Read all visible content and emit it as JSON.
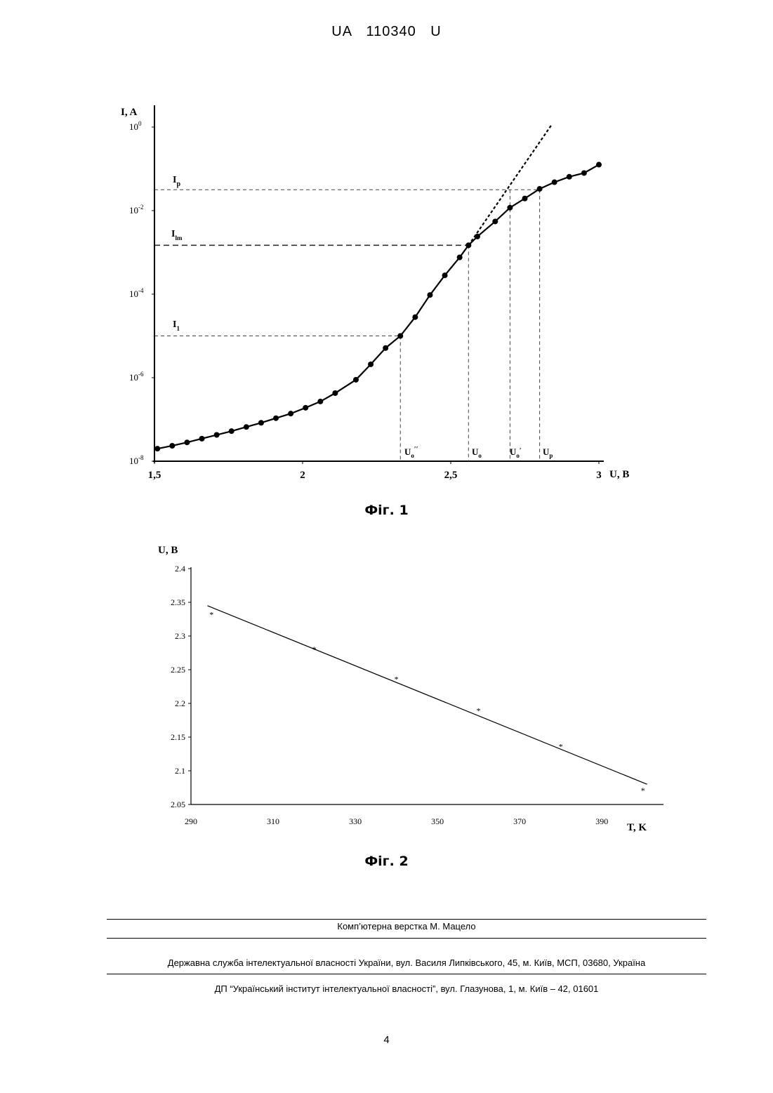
{
  "header": {
    "document_id": "UA 110340 U"
  },
  "figure1": {
    "caption": "Фіг. 1",
    "labels": {
      "y_axis": "I, A",
      "x_axis": "U, B",
      "Ip": "I",
      "Ip_sub": "p",
      "Ilm": "I",
      "Ilm_sub": "lm",
      "I1": "I",
      "I1_sub": "1",
      "U0pp": "U",
      "U0pp_sub": "o",
      "U0pp_sup": "′′",
      "U0": "U",
      "U0_sub": "o",
      "U0p": "U",
      "U0p_sub": "o",
      "U0p_sup": "′",
      "Up": "U",
      "Up_sub": "p"
    },
    "chart_data": {
      "type": "line",
      "x_label": "U, B",
      "y_label": "I, A",
      "y_scale": "log",
      "xlim": [
        1.5,
        3.0
      ],
      "ylim_exp": [
        -8,
        0
      ],
      "x_ticks": [
        "1,5",
        "2",
        "2,5",
        "3"
      ],
      "x_tick_values": [
        1.5,
        2.0,
        2.5,
        3.0
      ],
      "y_ticks": [
        {
          "base": "10",
          "exp": "0"
        },
        {
          "base": "10",
          "exp": "-2"
        },
        {
          "base": "10",
          "exp": "-4"
        },
        {
          "base": "10",
          "exp": "-6"
        },
        {
          "base": "10",
          "exp": "-8"
        }
      ],
      "y_tick_exps": [
        0,
        -2,
        -4,
        -6,
        -8
      ],
      "series": [
        {
          "style": "solid-with-markers",
          "points": [
            [
              1.51,
              -7.7
            ],
            [
              1.56,
              -7.63
            ],
            [
              1.61,
              -7.55
            ],
            [
              1.66,
              -7.46
            ],
            [
              1.71,
              -7.37
            ],
            [
              1.76,
              -7.28
            ],
            [
              1.81,
              -7.18
            ],
            [
              1.86,
              -7.08
            ],
            [
              1.91,
              -6.97
            ],
            [
              1.96,
              -6.86
            ],
            [
              2.01,
              -6.72
            ],
            [
              2.06,
              -6.57
            ],
            [
              2.11,
              -6.37
            ],
            [
              2.18,
              -6.05
            ],
            [
              2.23,
              -5.68
            ],
            [
              2.28,
              -5.29
            ],
            [
              2.33,
              -5.0
            ],
            [
              2.38,
              -4.55
            ],
            [
              2.43,
              -4.02
            ],
            [
              2.48,
              -3.55
            ],
            [
              2.53,
              -3.12
            ],
            [
              2.56,
              -2.83
            ],
            [
              2.59,
              -2.62
            ],
            [
              2.65,
              -2.26
            ],
            [
              2.7,
              -1.93
            ],
            [
              2.75,
              -1.71
            ],
            [
              2.8,
              -1.48
            ],
            [
              2.85,
              -1.32
            ],
            [
              2.9,
              -1.19
            ],
            [
              2.95,
              -1.1
            ],
            [
              3.0,
              -0.9
            ]
          ]
        },
        {
          "style": "dashed-extrapolation",
          "points": [
            [
              2.56,
              -2.83
            ],
            [
              2.84,
              0.05
            ]
          ]
        }
      ],
      "reference_levels": {
        "Ip": -1.5,
        "Ilm": -2.83,
        "I1": -5.0,
        "U0pp": 2.33,
        "U0": 2.56,
        "U0p": 2.7,
        "Up": 2.8
      }
    }
  },
  "figure2": {
    "caption": "Фіг. 2",
    "labels": {
      "y_axis": "U, B",
      "x_axis": "T, K"
    },
    "chart_data": {
      "type": "scatter",
      "x_label": "T, K",
      "y_label": "U, B",
      "xlim": [
        290,
        405
      ],
      "ylim": [
        2.05,
        2.4
      ],
      "x_ticks": [
        "290",
        "310",
        "330",
        "350",
        "370",
        "390"
      ],
      "y_ticks": [
        "2.4",
        "2.35",
        "2.3",
        "2.25",
        "2.2",
        "2.15",
        "2.1",
        "2.05"
      ],
      "points": [
        [
          295,
          2.333
        ],
        [
          320,
          2.281
        ],
        [
          340,
          2.237
        ],
        [
          360,
          2.19
        ],
        [
          380,
          2.137
        ],
        [
          400,
          2.072
        ]
      ],
      "trendline": [
        [
          294,
          2.345
        ],
        [
          401,
          2.08
        ]
      ]
    }
  },
  "footer": {
    "line1": "Комп’ютерна верстка М. Мацело",
    "line2": "Державна служба інтелектуальної власності України, вул. Василя Липківського, 45, м. Київ, МСП, 03680, Україна",
    "line3": "ДП “Український інститут інтелектуальної власності”, вул. Глазунова, 1, м. Київ – 42, 01601"
  },
  "page_number": "4"
}
